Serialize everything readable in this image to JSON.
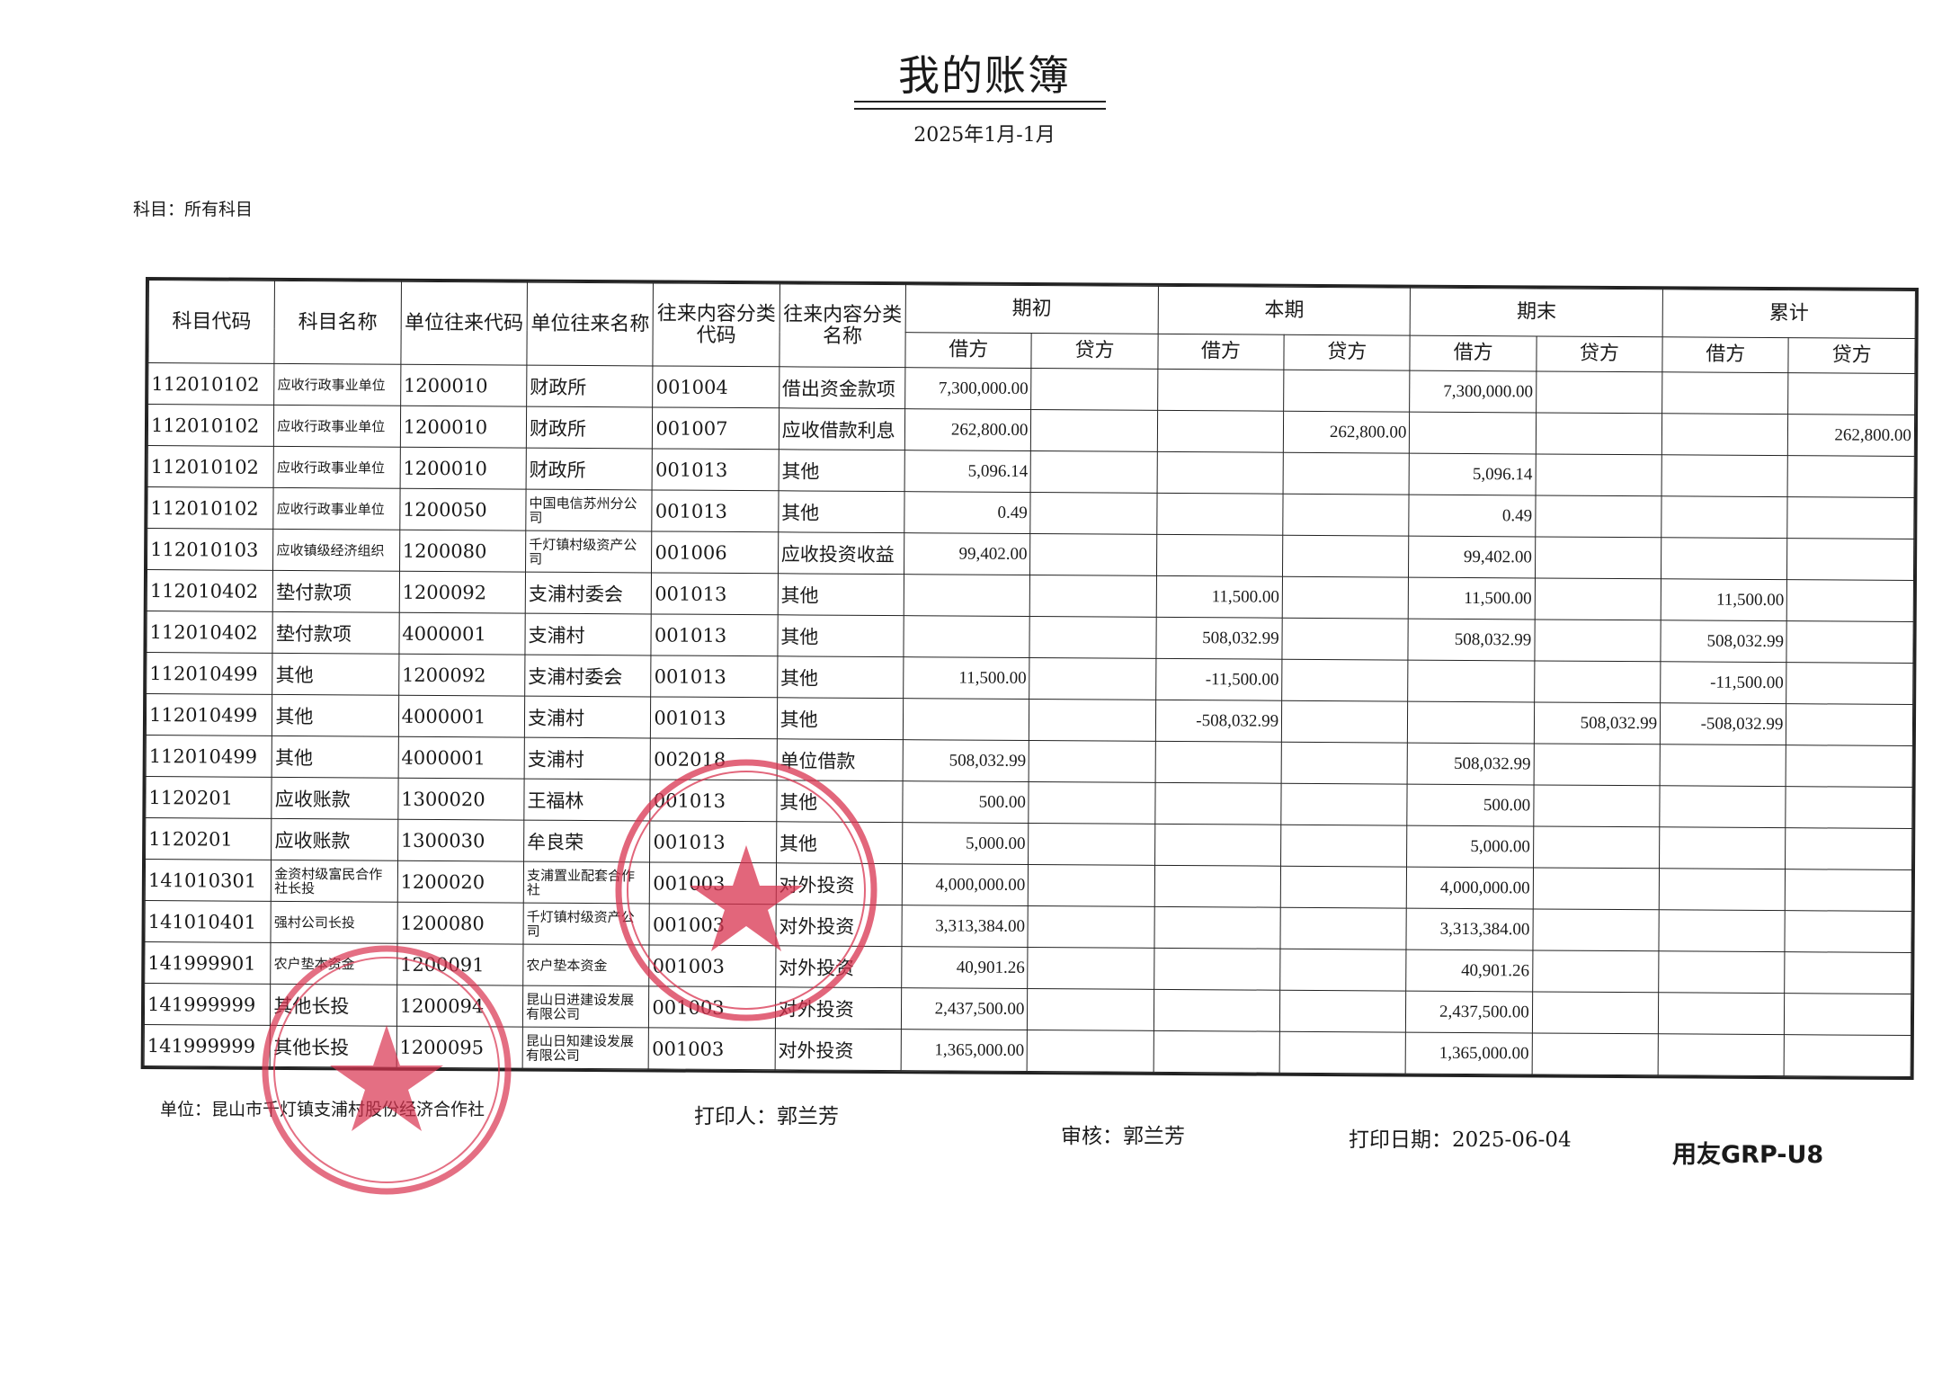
{
  "title": "我的账簿",
  "period": "2025年1月-1月",
  "subject_label": "科目：所有科目",
  "headers": {
    "cols": [
      "科目代码",
      "科目名称",
      "单位往来代码",
      "单位往来名称",
      "往来内容分类代码",
      "往来内容分类名称"
    ],
    "groups": [
      "期初",
      "本期",
      "期末",
      "累计"
    ],
    "debit": "借方",
    "credit": "贷方"
  },
  "rows": [
    [
      "112010102",
      "应收行政事业单位",
      "1200010",
      "财政所",
      "001004",
      "借出资金款项",
      "7,300,000.00",
      "",
      "",
      "",
      "7,300,000.00",
      "",
      "",
      ""
    ],
    [
      "112010102",
      "应收行政事业单位",
      "1200010",
      "财政所",
      "001007",
      "应收借款利息",
      "262,800.00",
      "",
      "",
      "262,800.00",
      "",
      "",
      "",
      "262,800.00"
    ],
    [
      "112010102",
      "应收行政事业单位",
      "1200010",
      "财政所",
      "001013",
      "其他",
      "5,096.14",
      "",
      "",
      "",
      "5,096.14",
      "",
      "",
      ""
    ],
    [
      "112010102",
      "应收行政事业单位",
      "1200050",
      "中国电信苏州分公司",
      "001013",
      "其他",
      "0.49",
      "",
      "",
      "",
      "0.49",
      "",
      "",
      ""
    ],
    [
      "112010103",
      "应收镇级经济组织",
      "1200080",
      "千灯镇村级资产公司",
      "001006",
      "应收投资收益",
      "99,402.00",
      "",
      "",
      "",
      "99,402.00",
      "",
      "",
      ""
    ],
    [
      "112010402",
      "垫付款项",
      "1200092",
      "支浦村委会",
      "001013",
      "其他",
      "",
      "",
      "11,500.00",
      "",
      "11,500.00",
      "",
      "11,500.00",
      ""
    ],
    [
      "112010402",
      "垫付款项",
      "4000001",
      "支浦村",
      "001013",
      "其他",
      "",
      "",
      "508,032.99",
      "",
      "508,032.99",
      "",
      "508,032.99",
      ""
    ],
    [
      "112010499",
      "其他",
      "1200092",
      "支浦村委会",
      "001013",
      "其他",
      "11,500.00",
      "",
      "-11,500.00",
      "",
      "",
      "",
      "-11,500.00",
      ""
    ],
    [
      "112010499",
      "其他",
      "4000001",
      "支浦村",
      "001013",
      "其他",
      "",
      "",
      "-508,032.99",
      "",
      "",
      "508,032.99",
      "-508,032.99",
      ""
    ],
    [
      "112010499",
      "其他",
      "4000001",
      "支浦村",
      "002018",
      "单位借款",
      "508,032.99",
      "",
      "",
      "",
      "508,032.99",
      "",
      "",
      ""
    ],
    [
      "1120201",
      "应收账款",
      "1300020",
      "王福林",
      "001013",
      "其他",
      "500.00",
      "",
      "",
      "",
      "500.00",
      "",
      "",
      ""
    ],
    [
      "1120201",
      "应收账款",
      "1300030",
      "牟良荣",
      "001013",
      "其他",
      "5,000.00",
      "",
      "",
      "",
      "5,000.00",
      "",
      "",
      ""
    ],
    [
      "141010301",
      "金资村级富民合作社长投",
      "1200020",
      "支浦置业配套合作社",
      "001003",
      "对外投资",
      "4,000,000.00",
      "",
      "",
      "",
      "4,000,000.00",
      "",
      "",
      ""
    ],
    [
      "141010401",
      "强村公司长投",
      "1200080",
      "千灯镇村级资产公司",
      "001003",
      "对外投资",
      "3,313,384.00",
      "",
      "",
      "",
      "3,313,384.00",
      "",
      "",
      ""
    ],
    [
      "141999901",
      "农户垫本资金",
      "1200091",
      "农户垫本资金",
      "001003",
      "对外投资",
      "40,901.26",
      "",
      "",
      "",
      "40,901.26",
      "",
      "",
      ""
    ],
    [
      "141999999",
      "其他长投",
      "1200094",
      "昆山日进建设发展有限公司",
      "001003",
      "对外投资",
      "2,437,500.00",
      "",
      "",
      "",
      "2,437,500.00",
      "",
      "",
      ""
    ],
    [
      "141999999",
      "其他长投",
      "1200095",
      "昆山日知建设发展有限公司",
      "001003",
      "对外投资",
      "1,365,000.00",
      "",
      "",
      "",
      "1,365,000.00",
      "",
      "",
      ""
    ]
  ],
  "footer": {
    "unit": "单位：昆山市千灯镇支浦村股份经济合作社",
    "printer": "打印人：郭兰芳",
    "reviewer": "审核：郭兰芳",
    "print_date": "打印日期：2025-06-04",
    "software_logo": "用友GRP-U8"
  },
  "stamps": {
    "text": "昆山市千灯镇支浦村股份经济合作社",
    "color": "#d9334f"
  }
}
